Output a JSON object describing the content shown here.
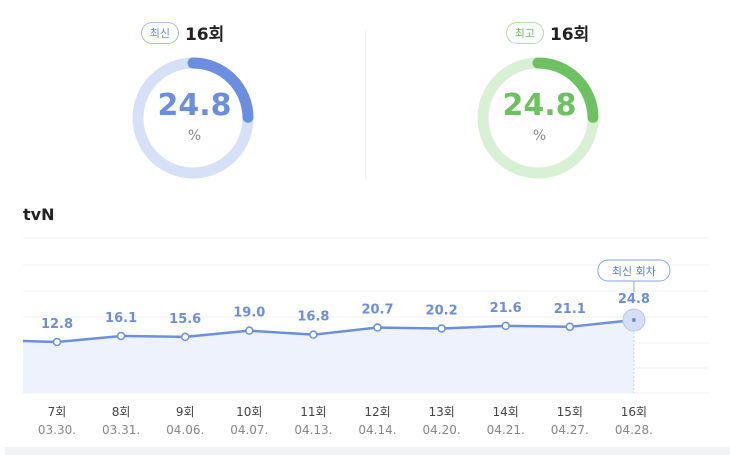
{
  "summary": [
    {
      "badge": "최신",
      "episode": "16회",
      "value": "24.8",
      "unit": "%",
      "percent": 24.8,
      "color": "#6a8fe0",
      "track": "#d6e1f8"
    },
    {
      "badge": "최고",
      "episode": "16회",
      "value": "24.8",
      "unit": "%",
      "percent": 24.8,
      "color": "#6cc160",
      "track": "#d8f0d3"
    }
  ],
  "network": "tvN",
  "chart_data": {
    "type": "area",
    "categories": [
      "7회",
      "8회",
      "9회",
      "10회",
      "11회",
      "12회",
      "13회",
      "14회",
      "15회",
      "16회"
    ],
    "dates": [
      "03.30.",
      "03.31.",
      "04.06.",
      "04.07.",
      "04.13.",
      "04.14.",
      "04.20.",
      "04.21.",
      "04.27.",
      "04.28."
    ],
    "values": [
      12.8,
      16.1,
      15.6,
      19.0,
      16.8,
      20.7,
      20.2,
      21.6,
      21.1,
      24.8
    ],
    "labels": [
      "12.8",
      "16.1",
      "15.6",
      "19.0",
      "16.8",
      "20.7",
      "20.2",
      "21.6",
      "21.1",
      "24.8"
    ],
    "highlight_label": "최신 회차",
    "color": "#6a8fe0",
    "grid": true
  }
}
